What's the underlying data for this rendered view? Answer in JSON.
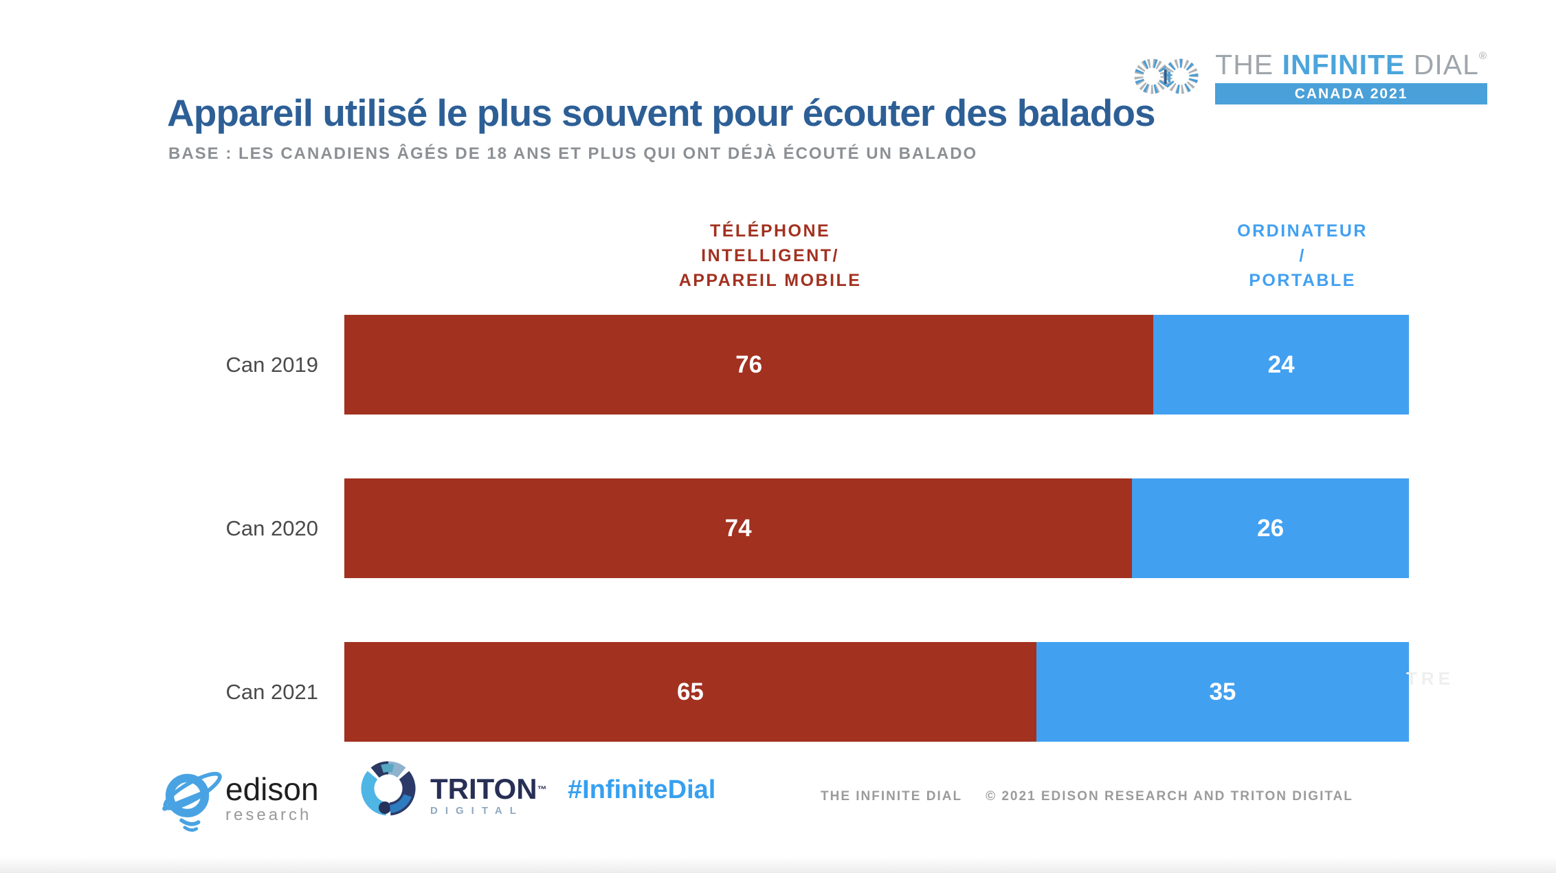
{
  "brand": {
    "the": "THE ",
    "infinite": "INFINITE",
    "dial": " DIAL",
    "reg": "®",
    "banner": "CANADA 2021",
    "banner_color": "#4AA0D8"
  },
  "header": {
    "title": "Appareil utilisé le plus souvent pour écouter des balados",
    "title_color": "#2D5F96",
    "subtitle": "BASE : LES CANADIENS ÂGÉS DE 18 ANS ET PLUS QUI ONT DÉJÀ ÉCOUTÉ UN BALADO"
  },
  "chart_data": {
    "type": "bar",
    "orientation": "horizontal-stacked",
    "title": "Appareil utilisé le plus souvent pour écouter des balados",
    "categories": [
      "Can 2019",
      "Can 2020",
      "Can 2021"
    ],
    "series": [
      {
        "name": "TÉLÉPHONE INTELLIGENT/APPAREIL MOBILE",
        "lines": [
          "TÉLÉPHONE",
          "INTELLIGENT/",
          "APPAREIL MOBILE"
        ],
        "color": "#A23120",
        "values": [
          76,
          74,
          65
        ]
      },
      {
        "name": "ORDINATEUR/PORTABLE",
        "lines": [
          "ORDINATEUR",
          "/",
          "PORTABLE"
        ],
        "color": "#42A0F0",
        "values": [
          24,
          26,
          35
        ]
      }
    ],
    "xlim": [
      0,
      100
    ],
    "grid": false,
    "legend_position": "top",
    "value_labels": "inside-white"
  },
  "annotations": {
    "ghost_text": "TRE"
  },
  "partners": {
    "edison": {
      "name": "edison",
      "sub": "research"
    },
    "triton": {
      "name": "TRITON",
      "tm": "™",
      "sub": "DIGITAL"
    }
  },
  "footer": {
    "hashtag": "#InfiniteDial",
    "copyright_left": "THE INFINITE DIAL",
    "copyright_right": "© 2021 EDISON RESEARCH AND TRITON DIGITAL"
  }
}
